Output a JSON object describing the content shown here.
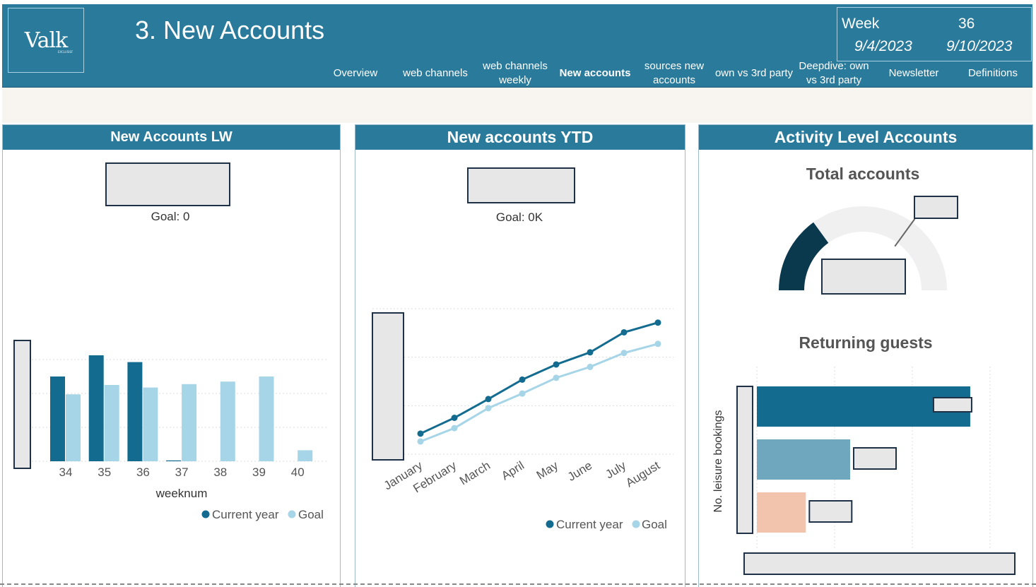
{
  "header": {
    "logo_text": "Valk",
    "logo_subtext": "EXCLUSIEF",
    "title": "3. New Accounts",
    "week_label": "Week",
    "week_number": "36",
    "date_start": "9/4/2023",
    "date_end": "9/10/2023"
  },
  "nav": [
    {
      "label": "Overview"
    },
    {
      "label": "web channels"
    },
    {
      "label": "web channels weekly"
    },
    {
      "label": "New accounts"
    },
    {
      "label": "sources new accounts"
    },
    {
      "label": "own vs 3rd party"
    },
    {
      "label": "Deepdive: own vs 3rd party"
    },
    {
      "label": "Newsletter"
    },
    {
      "label": "Definitions"
    }
  ],
  "panels": {
    "lw": {
      "title": "New Accounts LW",
      "goal": "Goal: 0"
    },
    "ytd": {
      "title": "New accounts YTD",
      "goal": "Goal: 0K"
    },
    "activity": {
      "title": "Activity Level Accounts",
      "total_title": "Total accounts",
      "returning_title": "Returning guests"
    }
  },
  "colors": {
    "primary": "#2a7a9b",
    "current": "#136c8f",
    "goal": "#a6d5e8",
    "gauge_fill": "#0a384c",
    "gauge_bg": "#f0f0f0",
    "bar_mid": "#6fa7bf",
    "bar_peach": "#f2c4ae"
  },
  "chart_data": [
    {
      "type": "bar",
      "title": "New Accounts LW",
      "xlabel": "weeknum",
      "ylabel": "",
      "categories": [
        "34",
        "35",
        "36",
        "37",
        "38",
        "39",
        "40"
      ],
      "series": [
        {
          "name": "Current year",
          "values": [
            100,
            125,
            117,
            1,
            0,
            0,
            0
          ]
        },
        {
          "name": "Goal",
          "values": [
            79,
            90,
            87,
            91,
            94,
            100,
            13
          ]
        }
      ],
      "ylim": [
        0,
        160
      ],
      "legend": "bottom-right"
    },
    {
      "type": "line",
      "title": "New accounts YTD",
      "xlabel": "",
      "ylabel": "",
      "categories": [
        "January",
        "February",
        "March",
        "April",
        "May",
        "June",
        "July",
        "August"
      ],
      "series": [
        {
          "name": "Current year",
          "values": [
            34,
            60,
            91,
            123,
            148,
            168,
            201,
            217
          ]
        },
        {
          "name": "Goal",
          "values": [
            21,
            43,
            76,
            100,
            126,
            144,
            167,
            182
          ]
        }
      ],
      "ylim": [
        0,
        240
      ],
      "legend": "bottom-right"
    },
    {
      "type": "gauge",
      "title": "Total accounts",
      "value": 0.3,
      "target": 0.7,
      "min": 0,
      "max": 1
    },
    {
      "type": "bar",
      "title": "Returning guests",
      "orientation": "horizontal",
      "ylabel": "No. leisure bookings",
      "values": [
        0.915,
        0.4,
        0.21
      ],
      "xlim": [
        0,
        1
      ]
    }
  ]
}
